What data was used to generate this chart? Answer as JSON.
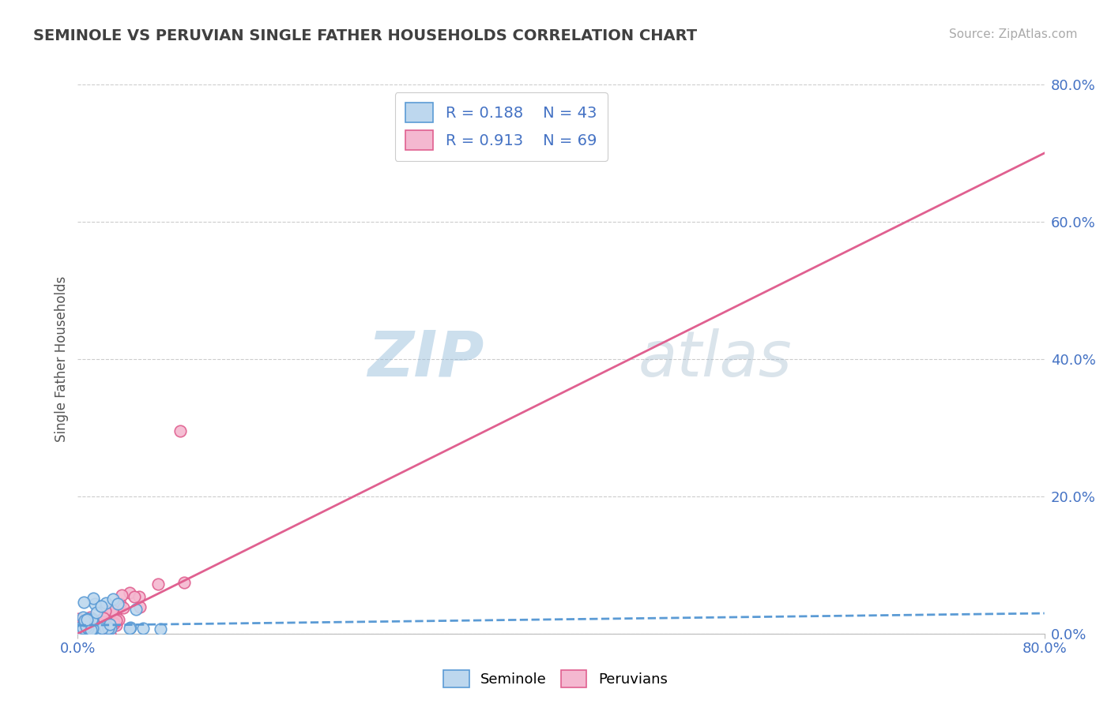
{
  "title": "SEMINOLE VS PERUVIAN SINGLE FATHER HOUSEHOLDS CORRELATION CHART",
  "source": "Source: ZipAtlas.com",
  "ylabel": "Single Father Households",
  "ylabel_right_ticks": [
    "80.0%",
    "60.0%",
    "40.0%",
    "20.0%",
    "0.0%"
  ],
  "ylabel_right_vals": [
    0.8,
    0.6,
    0.4,
    0.2,
    0.0
  ],
  "xlim": [
    0.0,
    0.8
  ],
  "ylim": [
    0.0,
    0.8
  ],
  "seminole_edge_color": "#5b9bd5",
  "seminole_face_color": "#bdd7ee",
  "peruvian_edge_color": "#e06090",
  "peruvian_face_color": "#f4b8d0",
  "legend_r_seminole": "R = 0.188",
  "legend_n_seminole": "N = 43",
  "legend_r_peruvian": "R = 0.913",
  "legend_n_peruvian": "N = 69",
  "seminole_slope": 0.022,
  "seminole_intercept": 0.012,
  "peruvian_slope": 0.875,
  "peruvian_intercept": 0.0,
  "watermark_zip": "ZIP",
  "watermark_atlas": "atlas",
  "background_color": "#ffffff",
  "grid_color": "#cccccc",
  "text_blue": "#4472c4",
  "title_color": "#404040"
}
